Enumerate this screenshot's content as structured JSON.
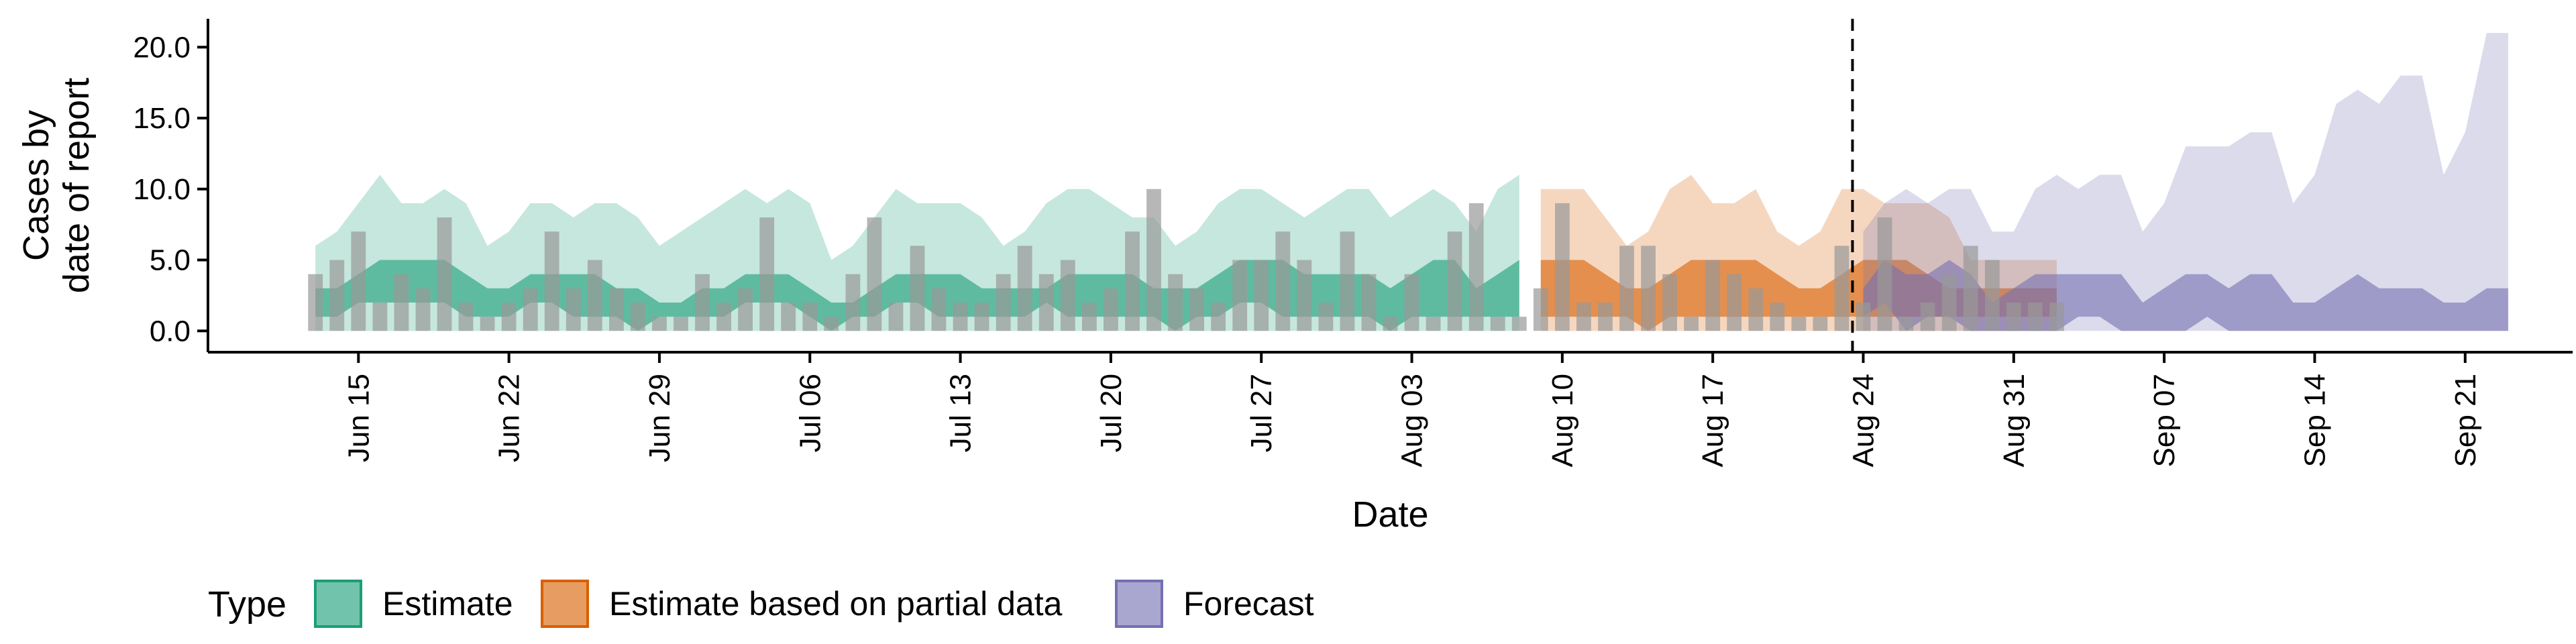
{
  "chart_data": {
    "type": "area",
    "xlabel": "Date",
    "ylabel_lines": [
      "Cases by",
      "date of report"
    ],
    "ylim": [
      -1.5,
      22
    ],
    "y_ticks": [
      0,
      5,
      10,
      15,
      20
    ],
    "y_tick_labels": [
      "0.0",
      "5.0",
      "10.0",
      "15.0",
      "20.0"
    ],
    "x_range": [
      "2020-06-08",
      "2020-09-26"
    ],
    "x_ticks": [
      "2020-06-15",
      "2020-06-22",
      "2020-06-29",
      "2020-07-06",
      "2020-07-13",
      "2020-07-20",
      "2020-07-27",
      "2020-08-03",
      "2020-08-10",
      "2020-08-17",
      "2020-08-24",
      "2020-08-31",
      "2020-09-07",
      "2020-09-14",
      "2020-09-21"
    ],
    "x_tick_labels": [
      "Jun 15",
      "Jun 22",
      "Jun 29",
      "Jul 06",
      "Jul 13",
      "Jul 20",
      "Jul 27",
      "Aug 03",
      "Aug 10",
      "Aug 17",
      "Aug 24",
      "Aug 31",
      "Sep 07",
      "Sep 14",
      "Sep 21"
    ],
    "forecast_line_date": "2020-08-23",
    "colors": {
      "estimate": "#1b9e77",
      "partial": "#d95f02",
      "forecast": "#7570b3",
      "bars": "#999999"
    },
    "legend": {
      "title": "Type",
      "position": "bottom",
      "entries": [
        {
          "key": "estimate",
          "label": "Estimate"
        },
        {
          "key": "partial",
          "label": "Estimate based on partial data"
        },
        {
          "key": "forecast",
          "label": "Forecast"
        }
      ]
    },
    "bars": {
      "start_date": "2020-06-13",
      "values": [
        4,
        5,
        7,
        2,
        4,
        3,
        8,
        2,
        1,
        2,
        3,
        7,
        3,
        5,
        3,
        2,
        1,
        1,
        4,
        2,
        3,
        8,
        2,
        2,
        1,
        4,
        8,
        2,
        6,
        3,
        2,
        2,
        4,
        6,
        4,
        5,
        2,
        3,
        7,
        10,
        4,
        3,
        2,
        5,
        5,
        7,
        5,
        2,
        7,
        4,
        1,
        4,
        1,
        7,
        9,
        1,
        1,
        3,
        9,
        2,
        2,
        6,
        6,
        4,
        1,
        5,
        4,
        3,
        2,
        1,
        1,
        6,
        2,
        8,
        1,
        2,
        4,
        6,
        5,
        2,
        2,
        2
      ]
    },
    "series": [
      {
        "key": "estimate",
        "start_date": "2020-06-13",
        "outer_lower": [
          0,
          0,
          0,
          0,
          0,
          0,
          0,
          0,
          0,
          0,
          0,
          0,
          0,
          0,
          0,
          0,
          0,
          0,
          0,
          0,
          0,
          0,
          0,
          0,
          0,
          0,
          0,
          0,
          0,
          0,
          0,
          0,
          0,
          0,
          0,
          0,
          0,
          0,
          0,
          0,
          0,
          0,
          0,
          0,
          0,
          0,
          0,
          0,
          0,
          0,
          0,
          0,
          0,
          0,
          0,
          0,
          0
        ],
        "outer_upper": [
          6,
          7,
          9,
          11,
          9,
          9,
          10,
          9,
          6,
          7,
          9,
          9,
          8,
          9,
          9,
          8,
          6,
          7,
          8,
          9,
          10,
          9,
          10,
          9,
          5,
          6,
          8,
          10,
          9,
          9,
          9,
          8,
          6,
          7,
          9,
          10,
          10,
          9,
          8,
          8,
          6,
          7,
          9,
          10,
          10,
          9,
          8,
          9,
          10,
          10,
          8,
          9,
          10,
          9,
          7,
          10,
          11
        ],
        "inner_lower": [
          1,
          1,
          2,
          2,
          2,
          2,
          2,
          1,
          1,
          1,
          2,
          2,
          1,
          1,
          1,
          0,
          1,
          1,
          1,
          1,
          2,
          2,
          2,
          1,
          0,
          1,
          1,
          2,
          2,
          1,
          1,
          1,
          1,
          1,
          2,
          1,
          1,
          1,
          1,
          1,
          0,
          1,
          1,
          2,
          2,
          1,
          1,
          1,
          1,
          1,
          0,
          1,
          1,
          1,
          1,
          1,
          1
        ],
        "inner_upper": [
          3,
          3,
          4,
          5,
          5,
          5,
          5,
          4,
          3,
          3,
          4,
          4,
          4,
          4,
          3,
          3,
          2,
          2,
          3,
          3,
          4,
          4,
          4,
          3,
          2,
          2,
          3,
          4,
          4,
          4,
          4,
          3,
          3,
          3,
          3,
          4,
          4,
          4,
          4,
          3,
          3,
          3,
          4,
          5,
          5,
          5,
          4,
          4,
          4,
          4,
          3,
          4,
          5,
          5,
          3,
          4,
          5
        ]
      },
      {
        "key": "partial",
        "start_date": "2020-08-09",
        "outer_lower": [
          0,
          0,
          0,
          0,
          0,
          0,
          0,
          0,
          0,
          0,
          0,
          0,
          0,
          0,
          0,
          0,
          0,
          0,
          0,
          0,
          0,
          0,
          0,
          0,
          0
        ],
        "outer_upper": [
          10,
          10,
          10,
          8,
          6,
          7,
          10,
          11,
          9,
          9,
          10,
          7,
          6,
          7,
          10,
          10,
          9,
          9,
          9,
          8,
          5,
          5,
          5,
          5,
          5
        ],
        "inner_lower": [
          1,
          1,
          1,
          1,
          1,
          0,
          1,
          1,
          1,
          1,
          1,
          1,
          1,
          1,
          1,
          1,
          1,
          1,
          1,
          1,
          1,
          1,
          1,
          1,
          1
        ],
        "inner_upper": [
          5,
          5,
          5,
          4,
          3,
          3,
          4,
          5,
          5,
          5,
          5,
          4,
          3,
          3,
          4,
          5,
          5,
          5,
          4,
          3,
          3,
          3,
          3,
          3,
          3
        ]
      },
      {
        "key": "forecast",
        "start_date": "2020-08-24",
        "outer_lower": [
          0,
          0,
          0,
          0,
          0,
          0,
          0,
          0,
          0,
          0,
          0,
          0,
          0,
          0,
          0,
          0,
          0,
          0,
          0,
          0,
          0,
          0,
          0,
          0,
          0,
          0,
          0,
          0,
          0,
          0,
          0
        ],
        "outer_upper": [
          7,
          9,
          10,
          9,
          10,
          10,
          7,
          7,
          10,
          11,
          10,
          11,
          11,
          7,
          9,
          13,
          13,
          13,
          14,
          14,
          9,
          11,
          16,
          17,
          16,
          18,
          18,
          11,
          14,
          21,
          21
        ],
        "inner_lower": [
          1,
          2,
          0,
          1,
          1,
          0,
          0,
          0,
          0,
          0,
          1,
          1,
          0,
          0,
          0,
          0,
          1,
          0,
          0,
          0,
          0,
          0,
          0,
          0,
          0,
          0,
          0,
          0,
          0,
          0,
          0
        ],
        "inner_upper": [
          3,
          5,
          4,
          4,
          5,
          4,
          2,
          3,
          4,
          4,
          4,
          4,
          4,
          2,
          3,
          4,
          4,
          3,
          4,
          4,
          2,
          2,
          3,
          4,
          3,
          3,
          3,
          2,
          2,
          3,
          3
        ]
      }
    ]
  }
}
